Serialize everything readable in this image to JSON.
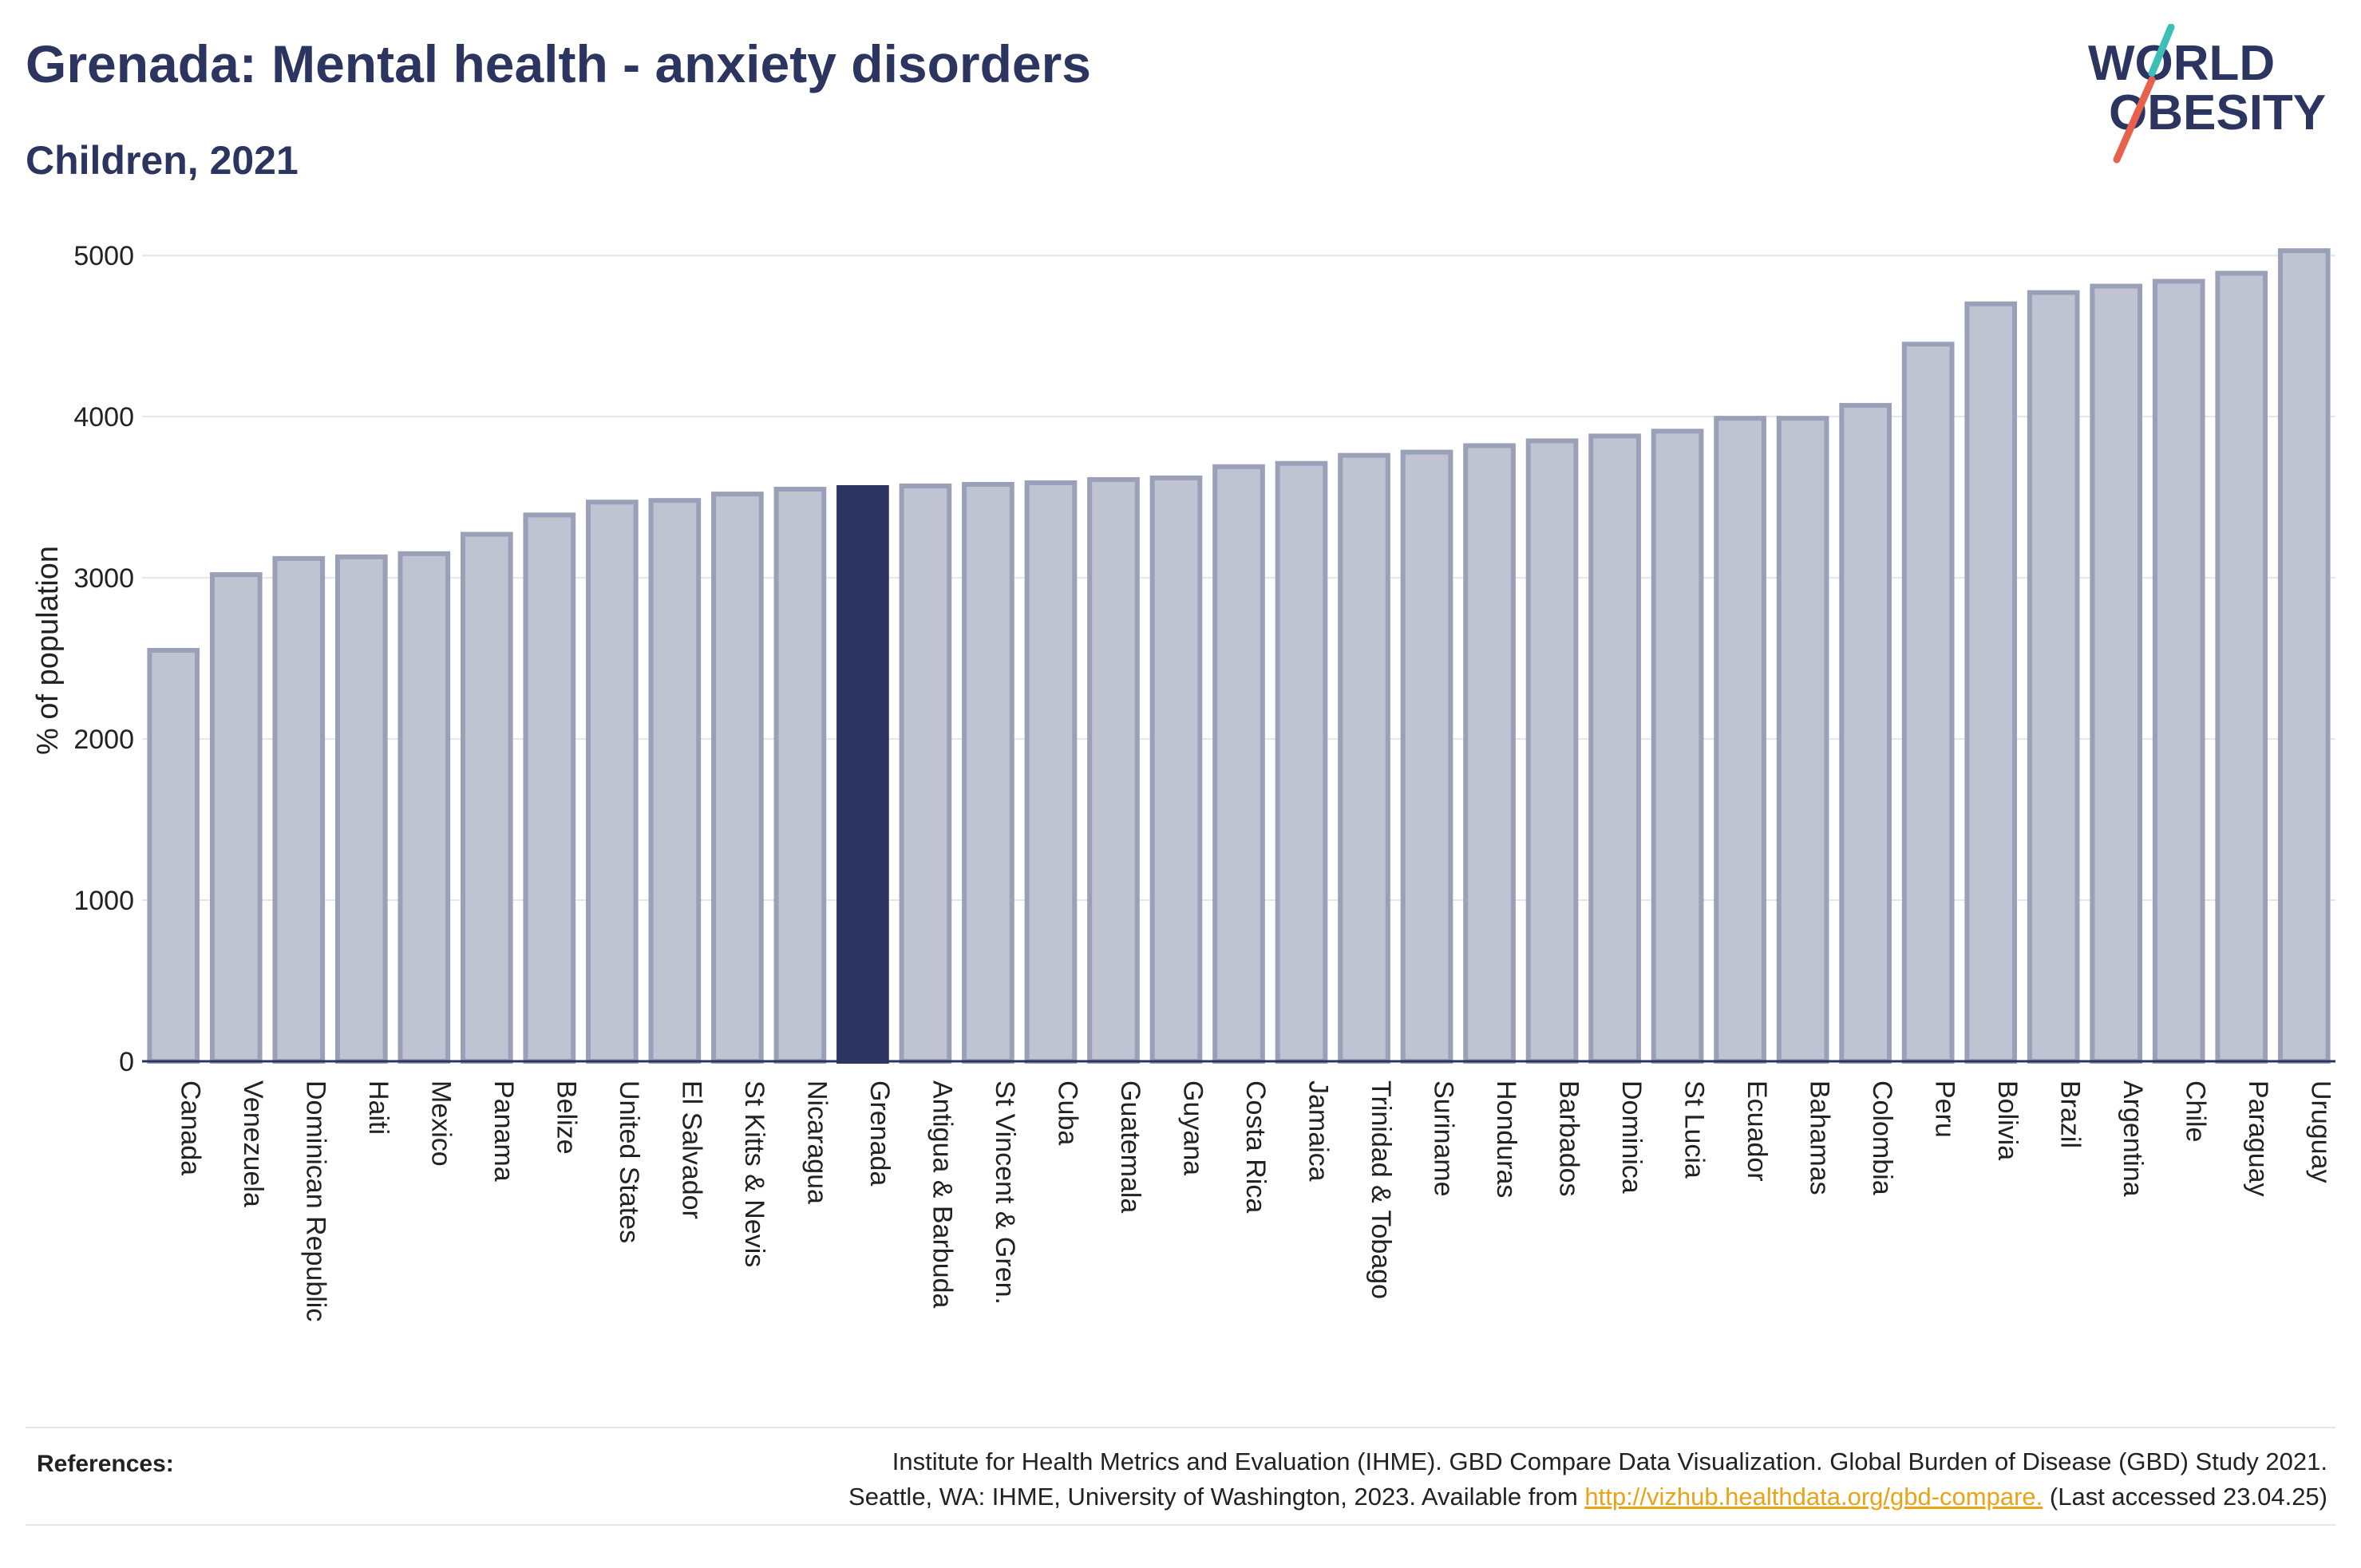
{
  "header": {
    "title": "Grenada: Mental health - anxiety disorders",
    "subtitle": "Children, 2021"
  },
  "logo": {
    "line1": "WORLD",
    "line2": "OBESITY",
    "text_color": "#2b3560",
    "slash_top_color": "#3bbfb6",
    "slash_bottom_color": "#e8614e"
  },
  "chart_data": {
    "type": "bar",
    "title": "Grenada: Mental health - anxiety disorders",
    "subtitle": "Children, 2021",
    "ylabel": "% of population",
    "xlabel": "",
    "ylim": [
      0,
      5100
    ],
    "yticks": [
      0,
      1000,
      2000,
      3000,
      4000,
      5000
    ],
    "grid": true,
    "highlight": "Grenada",
    "colors": {
      "bar_fill": "#c0c3d1",
      "bar_stroke": "#9aa0b8",
      "highlight_fill": "#2b3560",
      "grid": "#e6e6e6",
      "axis": "#2b3560"
    },
    "categories": [
      "Canada",
      "Venezuela",
      "Dominican Republic",
      "Haiti",
      "Mexico",
      "Panama",
      "Belize",
      "United States",
      "El Salvador",
      "St Kitts & Nevis",
      "Nicaragua",
      "Grenada",
      "Antigua & Barbuda",
      "St Vincent & Gren.",
      "Cuba",
      "Guatemala",
      "Guyana",
      "Costa Rica",
      "Jamaica",
      "Trinidad & Tobago",
      "Suriname",
      "Honduras",
      "Barbados",
      "Dominica",
      "St Lucia",
      "Ecuador",
      "Bahamas",
      "Colombia",
      "Peru",
      "Bolivia",
      "Brazil",
      "Argentina",
      "Chile",
      "Paraguay",
      "Uruguay"
    ],
    "values": [
      2550,
      3020,
      3120,
      3130,
      3150,
      3270,
      3390,
      3470,
      3480,
      3520,
      3550,
      3560,
      3570,
      3580,
      3590,
      3610,
      3620,
      3690,
      3710,
      3760,
      3780,
      3820,
      3850,
      3880,
      3910,
      3990,
      3990,
      4070,
      4450,
      4700,
      4770,
      4810,
      4840,
      4890,
      5030
    ]
  },
  "references": {
    "label": "References:",
    "line1": "Institute for Health Metrics and Evaluation (IHME). GBD Compare Data Visualization. Global Burden of Disease (GBD) Study 2021.",
    "line2_prefix": "Seattle, WA: IHME, University of Washington, 2023. Available from ",
    "link_text": "http://vizhub.healthdata.org/gbd-compare.",
    "line2_suffix": " (Last accessed 23.04.25)"
  }
}
